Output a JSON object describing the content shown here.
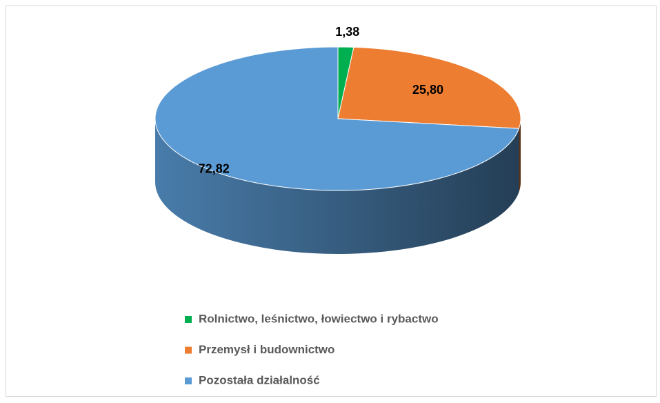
{
  "chart_data": {
    "type": "pie",
    "3d": true,
    "categories": [
      "Rolnictwo, leśnictwo, łowiectwo i rybactwo",
      "Przemysł i budownictwo",
      "Pozostała działalność"
    ],
    "values": [
      1.38,
      25.8,
      72.82
    ],
    "value_labels": [
      "1,38",
      "25,80",
      "72,82"
    ],
    "colors": [
      "#00b050",
      "#ed7d31",
      "#5b9bd5"
    ],
    "legend": "bottom"
  }
}
